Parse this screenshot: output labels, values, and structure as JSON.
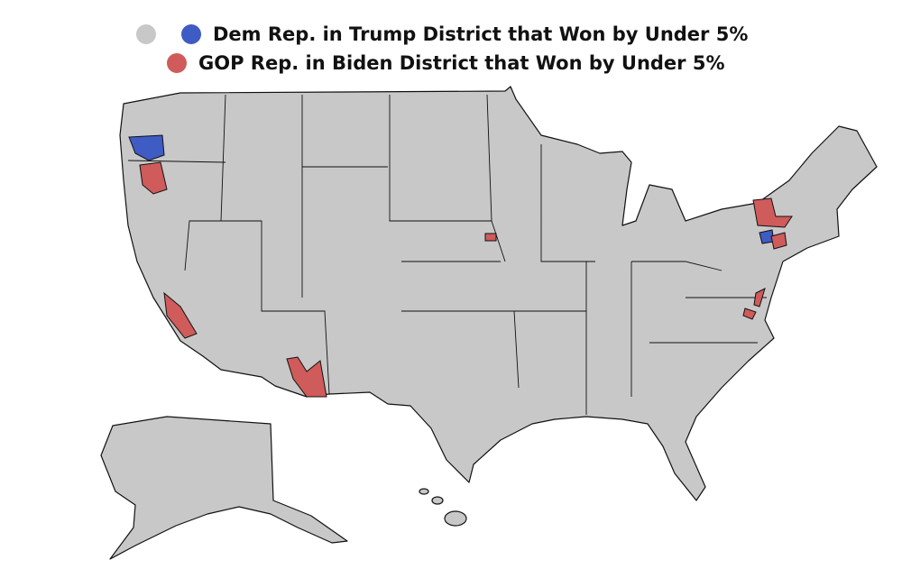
{
  "legend": [
    {
      "color": "#c8c8c8",
      "label": null
    },
    {
      "color": "#3f5bc4",
      "label": "Dem Rep. in Trump District that Won by Under 5%"
    },
    {
      "color": "#d05b5b",
      "label": "GOP Rep. in Biden District that Won by Under 5%"
    }
  ]
}
